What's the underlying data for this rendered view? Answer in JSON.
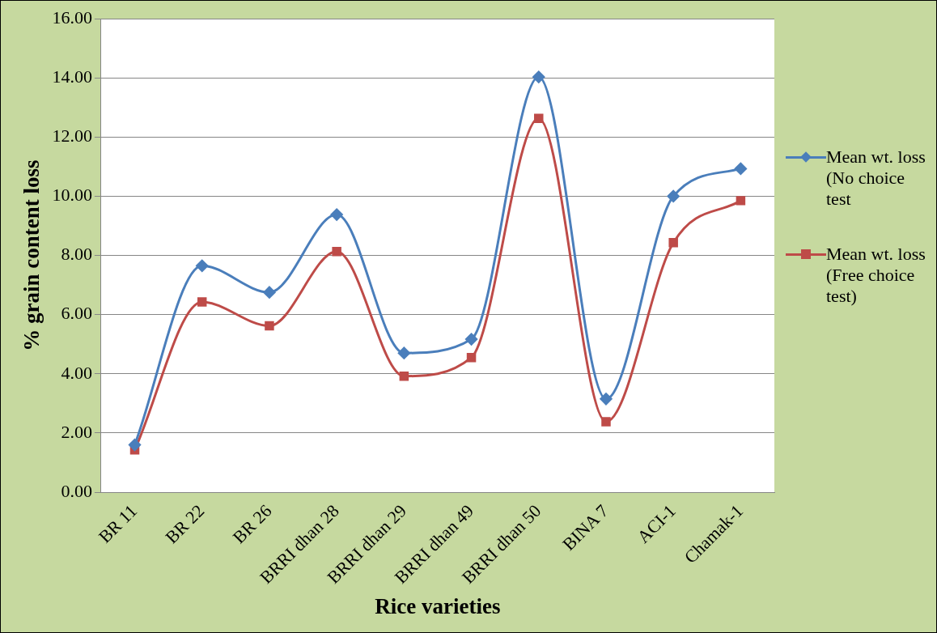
{
  "chart_data": {
    "type": "line",
    "xlabel": "Rice varieties",
    "ylabel": "% grain content loss",
    "categories": [
      "BR 11",
      "BR 22",
      "BR 26",
      "BRRI dhan 28",
      "BRRI dhan 29",
      "BRRI dhan 49",
      "BRRI dhan 50",
      "BINA 7",
      "ACI-1",
      "Chamak-1"
    ],
    "series": [
      {
        "name": "Mean wt. loss (No choice test",
        "color": "#4a7ebb",
        "marker": "diamond",
        "values": [
          1.6,
          7.65,
          6.75,
          9.38,
          4.7,
          5.17,
          14.03,
          3.15,
          10.0,
          10.93
        ]
      },
      {
        "name": "Mean wt. loss (Free choice test)",
        "color": "#be4b48",
        "marker": "square",
        "values": [
          1.43,
          6.43,
          5.62,
          8.13,
          3.92,
          4.55,
          12.63,
          2.38,
          8.43,
          9.85
        ]
      }
    ],
    "ylim": [
      0,
      16
    ],
    "yticks": [
      {
        "value": 0,
        "label": "0.00"
      },
      {
        "value": 2,
        "label": "2.00"
      },
      {
        "value": 4,
        "label": "4.00"
      },
      {
        "value": 6,
        "label": "6.00"
      },
      {
        "value": 8,
        "label": "8.00"
      },
      {
        "value": 10,
        "label": "10.00"
      },
      {
        "value": 12,
        "label": "12.00"
      },
      {
        "value": 14,
        "label": "14.00"
      },
      {
        "value": 16,
        "label": "16.00"
      }
    ],
    "grid": "y",
    "legend": "right",
    "line_style": "solid"
  }
}
